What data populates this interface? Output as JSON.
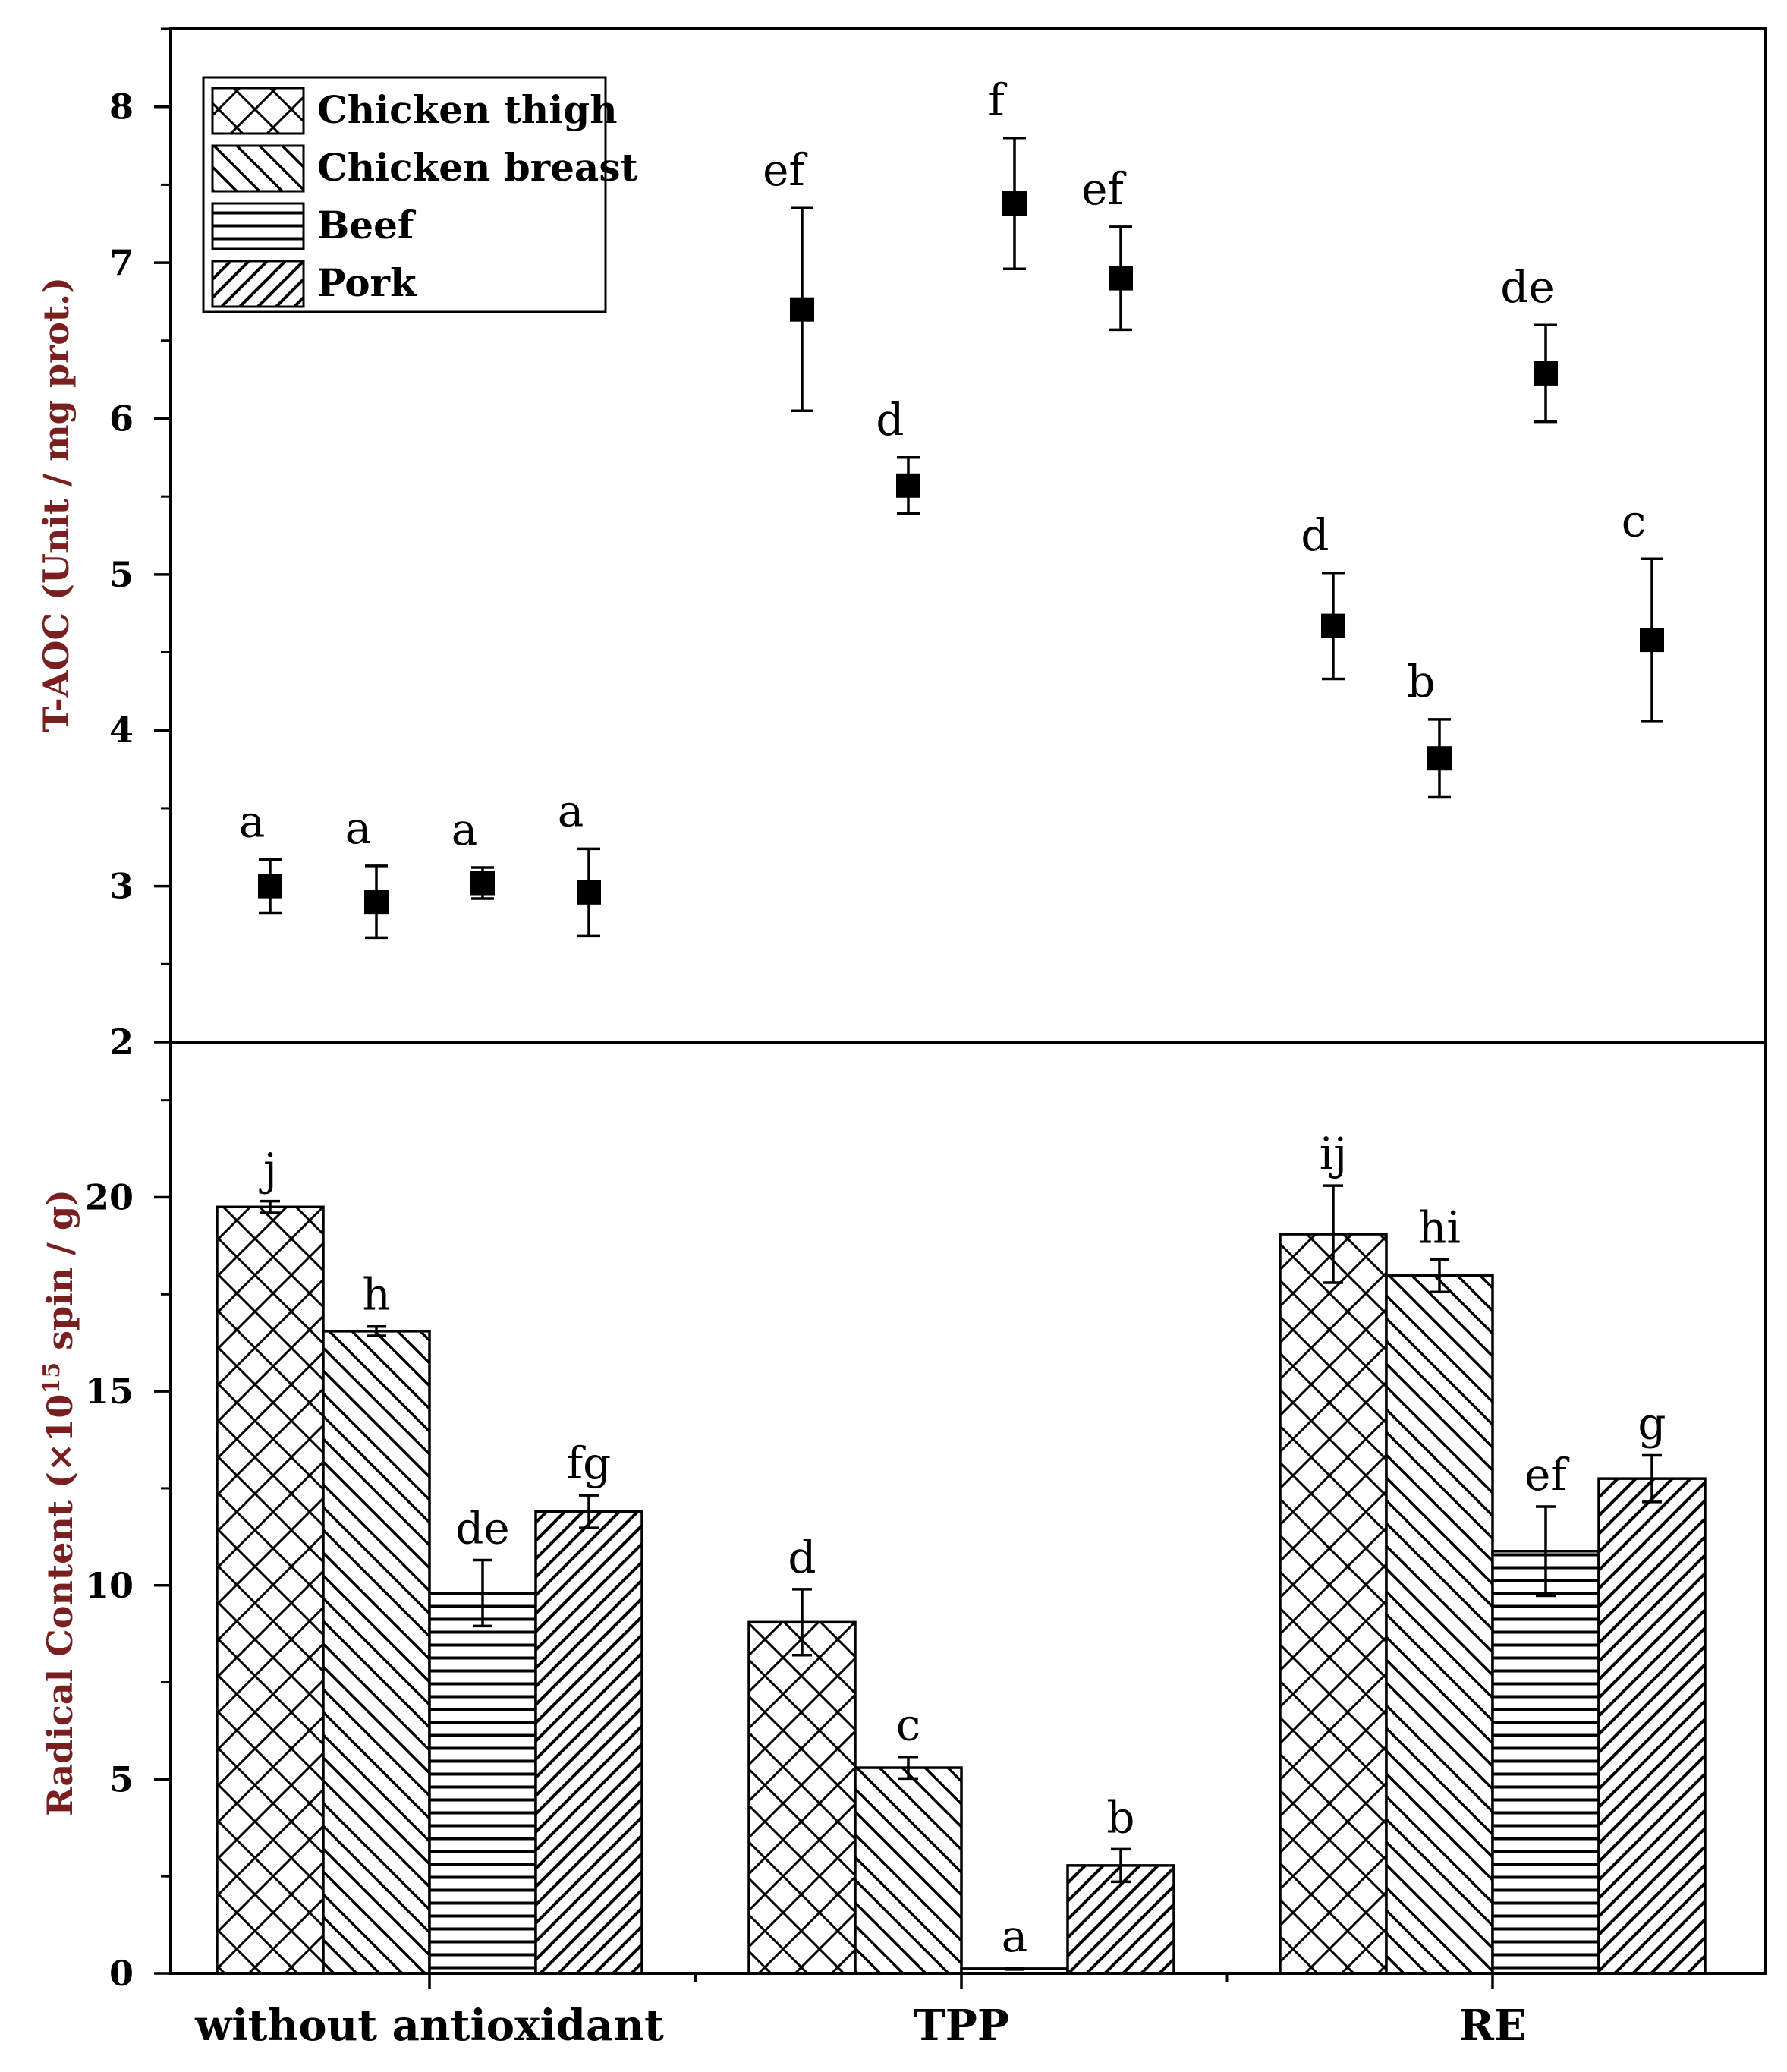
{
  "chart_data": {
    "legend": {
      "placement": "top-left",
      "entries": [
        {
          "name": "Chicken thigh",
          "pattern": "crosshatch"
        },
        {
          "name": "Chicken breast",
          "pattern": "backslash"
        },
        {
          "name": "Beef",
          "pattern": "horizontal"
        },
        {
          "name": "Pork",
          "pattern": "slash"
        }
      ]
    },
    "categories": [
      "without antioxidant",
      "TPP",
      "RE"
    ],
    "series_names": [
      "Chicken thigh",
      "Chicken breast",
      "Beef",
      "Pork"
    ],
    "panels": [
      {
        "type": "scatter",
        "ylabel": "T-AOC (Unit / mg prot.)",
        "ylim": [
          2,
          8.5
        ],
        "yticks": [
          "2",
          "3",
          "4",
          "5",
          "6",
          "7",
          "8"
        ],
        "points": [
          {
            "category": "without antioxidant",
            "series": "Chicken thigh",
            "value": 3.0,
            "err": 0.17,
            "label": "a"
          },
          {
            "category": "without antioxidant",
            "series": "Chicken breast",
            "value": 2.9,
            "err": 0.23,
            "label": "a"
          },
          {
            "category": "without antioxidant",
            "series": "Beef",
            "value": 3.02,
            "err": 0.1,
            "label": "a"
          },
          {
            "category": "without antioxidant",
            "series": "Pork",
            "value": 2.96,
            "err": 0.28,
            "label": "a"
          },
          {
            "category": "TPP",
            "series": "Chicken thigh",
            "value": 6.7,
            "err": 0.65,
            "label": "ef"
          },
          {
            "category": "TPP",
            "series": "Chicken breast",
            "value": 5.57,
            "err": 0.18,
            "label": "d"
          },
          {
            "category": "TPP",
            "series": "Beef",
            "value": 7.38,
            "err": 0.42,
            "label": "f"
          },
          {
            "category": "TPP",
            "series": "Pork",
            "value": 6.9,
            "err": 0.33,
            "label": "ef"
          },
          {
            "category": "RE",
            "series": "Chicken thigh",
            "value": 4.67,
            "err": 0.34,
            "label": "d"
          },
          {
            "category": "RE",
            "series": "Chicken breast",
            "value": 3.82,
            "err": 0.25,
            "label": "b"
          },
          {
            "category": "RE",
            "series": "Beef",
            "value": 6.29,
            "err": 0.31,
            "label": "de"
          },
          {
            "category": "RE",
            "series": "Pork",
            "value": 4.58,
            "err": 0.52,
            "label": "c"
          }
        ]
      },
      {
        "type": "bar",
        "ylabel": "Radical Content (×10",
        "ylabel_exp": "15",
        "ylabel_suffix": " spin / g)",
        "ylim": [
          0,
          24
        ],
        "yticks": [
          "0",
          "5",
          "10",
          "15",
          "20"
        ],
        "series": [
          {
            "name": "Chicken thigh",
            "values": [
              19.75,
              9.05,
              19.05
            ],
            "err": [
              0.15,
              0.85,
              1.25
            ],
            "labels": [
              "j",
              "d",
              "ij"
            ]
          },
          {
            "name": "Chicken breast",
            "values": [
              16.55,
              5.3,
              17.98
            ],
            "err": [
              0.12,
              0.28,
              0.42
            ],
            "labels": [
              "h",
              "c",
              "hi"
            ]
          },
          {
            "name": "Beef",
            "values": [
              9.8,
              0.12,
              10.88
            ],
            "err": [
              0.85,
              0.02,
              1.15
            ],
            "labels": [
              "de",
              "a",
              "ef"
            ]
          },
          {
            "name": "Pork",
            "values": [
              11.9,
              2.78,
              12.75
            ],
            "err": [
              0.42,
              0.42,
              0.6
            ],
            "labels": [
              "fg",
              "b",
              "g"
            ]
          }
        ]
      }
    ]
  }
}
